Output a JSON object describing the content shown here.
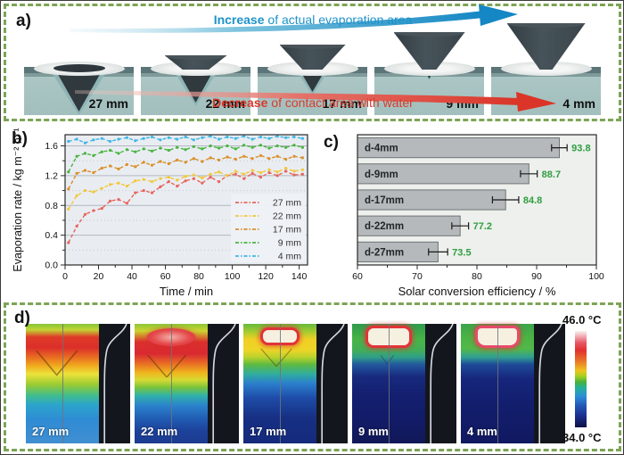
{
  "panel_a": {
    "label": "a)",
    "arrow_top": {
      "bold": "Increase",
      "rest": " of actual evaporation area",
      "color": "#1d93c9"
    },
    "arrow_bottom": {
      "bold": "Decrease",
      "rest": " of contact area with water",
      "color": "#d93a2b"
    },
    "stages": [
      {
        "label": "27 mm"
      },
      {
        "label": "22 mm"
      },
      {
        "label": "17 mm"
      },
      {
        "label": "9 mm"
      },
      {
        "label": "4 mm"
      }
    ]
  },
  "panel_b": {
    "label": "b)"
  },
  "panel_c": {
    "label": "c)"
  },
  "panel_d": {
    "label": "d)",
    "stages": [
      {
        "label": "27 mm"
      },
      {
        "label": "22 mm"
      },
      {
        "label": "17 mm"
      },
      {
        "label": "9 mm"
      },
      {
        "label": "4 mm"
      }
    ],
    "colorbar": {
      "max": "46.0 °C",
      "min": "34.0 °C"
    }
  },
  "colors": {
    "dashed_border": "#7da456",
    "bar_fill": "#b5b9bb",
    "value_label_green": "#2f9e41"
  },
  "chart_data": [
    {
      "type": "line",
      "title": "",
      "xlabel": "Time / min",
      "ylabel": "Evaporation rate / kg m⁻² h⁻¹",
      "xlim": [
        0,
        145
      ],
      "ylim": [
        0,
        1.75
      ],
      "xticks": [
        0,
        20,
        40,
        60,
        80,
        100,
        120,
        140
      ],
      "xminor": [
        10,
        30,
        50,
        70,
        90,
        110,
        130
      ],
      "yticks": [
        0.0,
        0.4,
        0.8,
        1.2,
        1.6
      ],
      "yminor": [
        0.2,
        0.6,
        1.0,
        1.4
      ],
      "grid": "solid major, dotted minor",
      "legend_position": "lower right",
      "bg": "#e9edf2",
      "x": [
        2,
        7,
        12,
        17,
        22,
        27,
        32,
        37,
        42,
        47,
        52,
        57,
        62,
        67,
        72,
        77,
        82,
        87,
        92,
        97,
        102,
        107,
        112,
        117,
        122,
        127,
        132,
        137,
        142
      ],
      "series": [
        {
          "name": "27 mm",
          "color": "#e8655c",
          "values": [
            0.3,
            0.52,
            0.68,
            0.73,
            0.76,
            0.86,
            0.88,
            0.83,
            0.97,
            1.0,
            0.97,
            1.05,
            1.12,
            1.06,
            1.13,
            1.16,
            1.1,
            1.18,
            1.12,
            1.2,
            1.22,
            1.16,
            1.23,
            1.18,
            1.24,
            1.2,
            1.26,
            1.21,
            1.22
          ]
        },
        {
          "name": "22 mm",
          "color": "#f2c83e",
          "values": [
            0.75,
            0.93,
            1.0,
            0.98,
            1.03,
            1.08,
            1.1,
            1.06,
            1.13,
            1.15,
            1.12,
            1.16,
            1.18,
            1.14,
            1.19,
            1.21,
            1.17,
            1.22,
            1.25,
            1.2,
            1.26,
            1.22,
            1.27,
            1.24,
            1.28,
            1.25,
            1.3,
            1.26,
            1.28
          ]
        },
        {
          "name": "17 mm",
          "color": "#d9902a",
          "values": [
            1.02,
            1.23,
            1.27,
            1.24,
            1.3,
            1.33,
            1.29,
            1.35,
            1.32,
            1.38,
            1.34,
            1.39,
            1.36,
            1.41,
            1.38,
            1.43,
            1.39,
            1.44,
            1.41,
            1.45,
            1.42,
            1.46,
            1.43,
            1.47,
            1.43,
            1.46,
            1.42,
            1.46,
            1.44
          ]
        },
        {
          "name": "9 mm",
          "color": "#4ab440",
          "values": [
            1.25,
            1.46,
            1.5,
            1.47,
            1.52,
            1.54,
            1.5,
            1.55,
            1.52,
            1.56,
            1.53,
            1.57,
            1.54,
            1.58,
            1.55,
            1.59,
            1.56,
            1.6,
            1.57,
            1.6,
            1.56,
            1.61,
            1.58,
            1.61,
            1.57,
            1.6,
            1.58,
            1.61,
            1.58
          ]
        },
        {
          "name": "4 mm",
          "color": "#41b6e6",
          "values": [
            1.66,
            1.69,
            1.64,
            1.68,
            1.7,
            1.66,
            1.69,
            1.71,
            1.67,
            1.7,
            1.72,
            1.68,
            1.71,
            1.69,
            1.72,
            1.68,
            1.71,
            1.73,
            1.69,
            1.72,
            1.7,
            1.73,
            1.69,
            1.72,
            1.7,
            1.73,
            1.71,
            1.72,
            1.7
          ]
        }
      ]
    },
    {
      "type": "bar",
      "orientation": "horizontal",
      "title": "",
      "xlabel": "Solar conversion efficiency / %",
      "xlim": [
        60,
        100
      ],
      "xticks": [
        60,
        70,
        80,
        90,
        100
      ],
      "xminor": [
        65,
        75,
        85,
        95
      ],
      "bg": "#edf0ec",
      "bar_color": "#b5b9bb",
      "bar_border": "#6e7476",
      "value_label_color": "#2f9e41",
      "categories": [
        "d-4mm",
        "d-9mm",
        "d-17mm",
        "d-22mm",
        "d-27mm"
      ],
      "values": [
        93.8,
        88.7,
        84.8,
        77.2,
        73.5
      ],
      "errors": [
        1.3,
        1.4,
        2.2,
        1.4,
        1.6
      ]
    }
  ]
}
